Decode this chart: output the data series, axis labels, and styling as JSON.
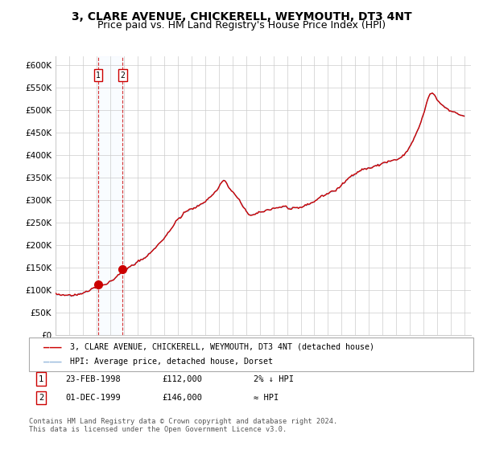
{
  "title": "3, CLARE AVENUE, CHICKERELL, WEYMOUTH, DT3 4NT",
  "subtitle": "Price paid vs. HM Land Registry's House Price Index (HPI)",
  "ylabel_ticks": [
    "£0",
    "£50K",
    "£100K",
    "£150K",
    "£200K",
    "£250K",
    "£300K",
    "£350K",
    "£400K",
    "£450K",
    "£500K",
    "£550K",
    "£600K"
  ],
  "ytick_values": [
    0,
    50000,
    100000,
    150000,
    200000,
    250000,
    300000,
    350000,
    400000,
    450000,
    500000,
    550000,
    600000
  ],
  "ylim": [
    0,
    620000
  ],
  "xlim_start": 1995.0,
  "xlim_end": 2025.5,
  "sale1_x": 1998.14,
  "sale1_y": 112000,
  "sale2_x": 1999.92,
  "sale2_y": 146000,
  "sale1_label": "1",
  "sale2_label": "2",
  "line_color_property": "#cc0000",
  "line_color_hpi": "#99bbdd",
  "legend_property": "3, CLARE AVENUE, CHICKERELL, WEYMOUTH, DT3 4NT (detached house)",
  "legend_hpi": "HPI: Average price, detached house, Dorset",
  "table_rows": [
    {
      "num": "1",
      "date": "23-FEB-1998",
      "price": "£112,000",
      "relation": "2% ↓ HPI"
    },
    {
      "num": "2",
      "date": "01-DEC-1999",
      "price": "£146,000",
      "relation": "≈ HPI"
    }
  ],
  "footer": "Contains HM Land Registry data © Crown copyright and database right 2024.\nThis data is licensed under the Open Government Licence v3.0.",
  "background_color": "#ffffff",
  "grid_color": "#cccccc",
  "title_fontsize": 10,
  "subtitle_fontsize": 9,
  "span_color": "#ddeeff",
  "hpi_monthly_seed": 42
}
